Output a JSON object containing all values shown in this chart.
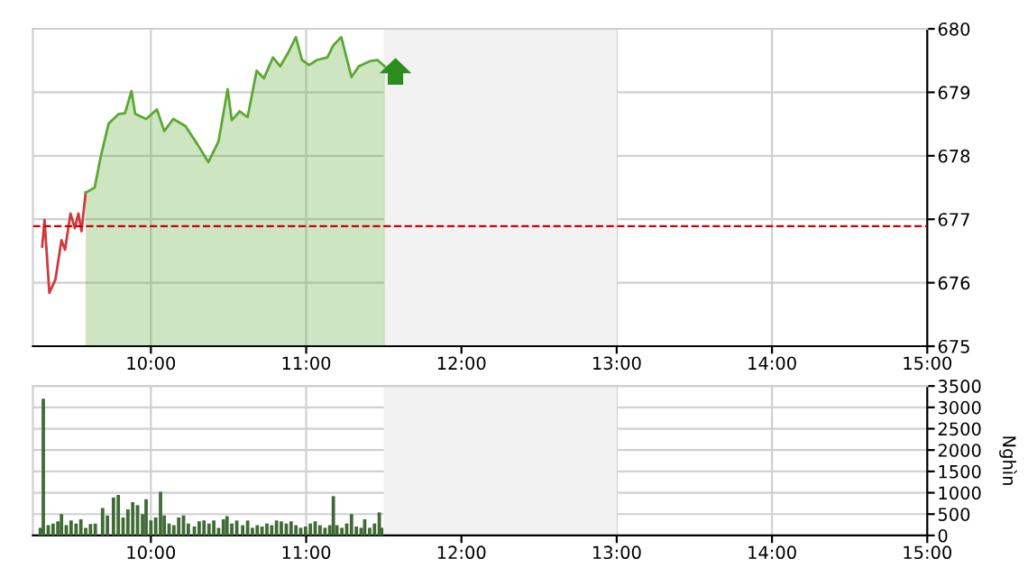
{
  "chart_data": [
    {
      "type": "area",
      "xlim": [
        9.24,
        15
      ],
      "ylim": [
        675,
        680
      ],
      "yticks": [
        675,
        676,
        677,
        678,
        679,
        680
      ],
      "xticks": [
        {
          "value": 10,
          "label": "10:00"
        },
        {
          "value": 11,
          "label": "11:00"
        },
        {
          "value": 12,
          "label": "12:00"
        },
        {
          "value": 13,
          "label": "13:00"
        },
        {
          "value": 14,
          "label": "14:00"
        },
        {
          "value": 15,
          "label": "15:00"
        }
      ],
      "grid": true,
      "bands": [
        {
          "axis": "x",
          "from": 11.5,
          "to": 13,
          "color": "#f2f2f2"
        }
      ],
      "ref_lines": [
        {
          "axis": "y",
          "value": 676.89,
          "color": "#cc0000",
          "line_style": "dashed"
        }
      ],
      "series": [
        {
          "type": "line",
          "color": "#d0393b",
          "x": [
            9.3,
            9.315,
            9.346,
            9.385,
            9.424,
            9.447,
            9.482,
            9.51,
            9.533,
            9.553,
            9.58
          ],
          "values": [
            676.57,
            676.99,
            675.84,
            676.05,
            676.67,
            676.52,
            677.09,
            676.86,
            677.09,
            676.81,
            677.42
          ]
        },
        {
          "type": "area",
          "color": "#5aa832",
          "x": [
            9.58,
            9.638,
            9.677,
            9.728,
            9.794,
            9.833,
            9.875,
            9.899,
            9.969,
            10.039,
            10.086,
            10.144,
            10.222,
            10.3,
            10.37,
            10.436,
            10.494,
            10.521,
            10.572,
            10.623,
            10.681,
            10.728,
            10.786,
            10.833,
            10.883,
            10.934,
            10.973,
            11.019,
            11.07,
            11.136,
            11.175,
            11.226,
            11.292,
            11.339,
            11.409,
            11.459,
            11.506
          ],
          "values": [
            677.42,
            677.5,
            677.99,
            678.51,
            678.66,
            678.67,
            679.02,
            678.66,
            678.58,
            678.73,
            678.39,
            678.58,
            678.47,
            678.18,
            677.9,
            678.23,
            679.05,
            678.56,
            678.7,
            678.61,
            679.34,
            679.22,
            679.55,
            679.41,
            679.62,
            679.87,
            679.51,
            679.43,
            679.51,
            679.55,
            679.74,
            679.87,
            679.24,
            679.41,
            679.49,
            679.51,
            679.41
          ]
        }
      ]
    },
    {
      "type": "bar",
      "xlim": [
        9.24,
        15
      ],
      "ylim": [
        0,
        3500
      ],
      "yticks": [
        0,
        500,
        1000,
        1500,
        2000,
        2500,
        3000,
        3500
      ],
      "xticks": [
        {
          "value": 10,
          "label": "10:00"
        },
        {
          "value": 11,
          "label": "11:00"
        },
        {
          "value": 12,
          "label": "12:00"
        },
        {
          "value": 13,
          "label": "13:00"
        },
        {
          "value": 14,
          "label": "14:00"
        },
        {
          "value": 15,
          "label": "15:00"
        }
      ],
      "ylabel": "Nghìn",
      "grid": true,
      "bands": [
        {
          "axis": "x",
          "from": 11.5,
          "to": 13,
          "color": "#f2f2f2"
        }
      ],
      "series": [
        {
          "color": "#3f6b35",
          "x": [
            9.288,
            9.307,
            9.339,
            9.37,
            9.401,
            9.424,
            9.455,
            9.486,
            9.518,
            9.549,
            9.58,
            9.611,
            9.642,
            9.689,
            9.72,
            9.759,
            9.79,
            9.821,
            9.852,
            9.883,
            9.914,
            9.946,
            9.969,
            10.0,
            10.031,
            10.062,
            10.086,
            10.117,
            10.148,
            10.179,
            10.21,
            10.241,
            10.28,
            10.311,
            10.342,
            10.374,
            10.405,
            10.436,
            10.467,
            10.49,
            10.521,
            10.553,
            10.591,
            10.623,
            10.654,
            10.685,
            10.716,
            10.747,
            10.778,
            10.809,
            10.84,
            10.872,
            10.903,
            10.934,
            10.965,
            10.996,
            11.027,
            11.058,
            11.089,
            11.121,
            11.152,
            11.175,
            11.198,
            11.23,
            11.261,
            11.292,
            11.323,
            11.354,
            11.377,
            11.409,
            11.44,
            11.471,
            11.486
          ],
          "values": [
            180,
            3200,
            240,
            280,
            330,
            500,
            240,
            350,
            280,
            380,
            180,
            270,
            280,
            640,
            470,
            890,
            950,
            420,
            610,
            780,
            710,
            500,
            850,
            350,
            420,
            1020,
            470,
            280,
            240,
            420,
            470,
            280,
            210,
            330,
            350,
            280,
            350,
            180,
            380,
            450,
            280,
            350,
            240,
            350,
            180,
            240,
            210,
            280,
            240,
            350,
            330,
            280,
            330,
            240,
            180,
            210,
            280,
            330,
            240,
            180,
            240,
            920,
            240,
            180,
            280,
            500,
            210,
            180,
            380,
            180,
            280,
            540,
            180
          ]
        }
      ]
    }
  ]
}
